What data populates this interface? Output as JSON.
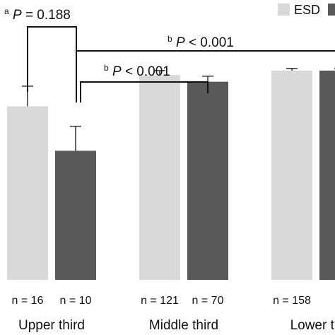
{
  "chart_data": {
    "type": "bar",
    "title": "",
    "xlabel": "",
    "ylabel": "",
    "categories": [
      "Upper third",
      "Middle third",
      "Lower third"
    ],
    "category_labels_visible": [
      "Upper third",
      "Middle third",
      "Lower th"
    ],
    "series": [
      {
        "name": "ESD",
        "color": "#d9d9d9",
        "values": [
          0.78,
          0.92,
          0.94
        ],
        "error": [
          0.09,
          0.02,
          0.01
        ],
        "n_labels": [
          "n = 16",
          "n = 121",
          "n = 158"
        ]
      },
      {
        "name": "",
        "color": "#595959",
        "values": [
          0.58,
          0.89,
          0.94
        ],
        "error": [
          0.11,
          0.025,
          0.01
        ],
        "n_labels": [
          "n = 10",
          "n = 70",
          ""
        ]
      }
    ],
    "ylim": [
      0,
      1.0
    ],
    "grid": false,
    "legend": {
      "entries": [
        "ESD"
      ],
      "placement": "top-right"
    },
    "annotations": [
      {
        "sup": "a",
        "label": "P = 0.188"
      },
      {
        "sup": "b",
        "label": "P < 0.001"
      },
      {
        "sup": "b",
        "label": "P < 0.001"
      }
    ]
  }
}
